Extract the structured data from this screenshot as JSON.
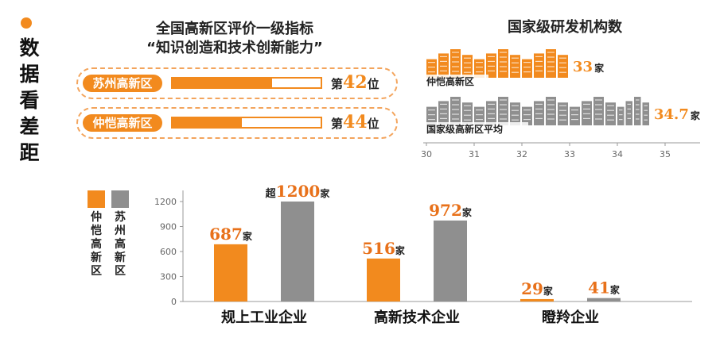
{
  "side_title": [
    "数",
    "据",
    "看",
    "差",
    "距"
  ],
  "colors": {
    "orange": "#f28a1e",
    "gray": "#8f8f8f"
  },
  "ranking": {
    "title_line1": "全国高新区评价一级指标",
    "title_line2": "“知识创造和技术创新能力”",
    "rows": [
      {
        "label": "苏州高新区",
        "prefix": "第",
        "rank": "42",
        "suffix": "位",
        "fill": 0.67
      },
      {
        "label": "仲恺高新区",
        "prefix": "第",
        "rank": "44",
        "suffix": "位",
        "fill": 0.47
      }
    ]
  },
  "chart_data": [
    {
      "type": "bar",
      "orientation": "horizontal",
      "title": "国家级研发机构数",
      "categories": [
        "仲恺高新区",
        "国家级高新区平均"
      ],
      "values": [
        33,
        34.7
      ],
      "value_labels": [
        "33",
        "34.7"
      ],
      "unit": "家",
      "xlim": [
        30,
        35
      ],
      "xticks": [
        "30",
        "31",
        "32",
        "33",
        "34",
        "35"
      ],
      "colors": [
        "#f28a1e",
        "#8f8f8f"
      ],
      "grid": false
    },
    {
      "type": "bar",
      "categories": [
        "规上工业企业",
        "高新技术企业",
        "瞪羚企业"
      ],
      "series": [
        {
          "name": "仲恺高新区",
          "values": [
            687,
            516,
            29
          ],
          "labels": [
            "687",
            "516",
            "29"
          ],
          "color": "#f28a1e"
        },
        {
          "name": "苏州高新区",
          "values": [
            1200,
            972,
            41
          ],
          "labels": [
            "1200",
            "972",
            "41"
          ],
          "prefix": [
            "超",
            "",
            ""
          ],
          "color": "#8f8f8f"
        }
      ],
      "unit": "家",
      "ylim": [
        0,
        1200
      ],
      "yticks": [
        "0",
        "300",
        "600",
        "900",
        "1200"
      ],
      "legend": "left",
      "grid": false
    }
  ]
}
